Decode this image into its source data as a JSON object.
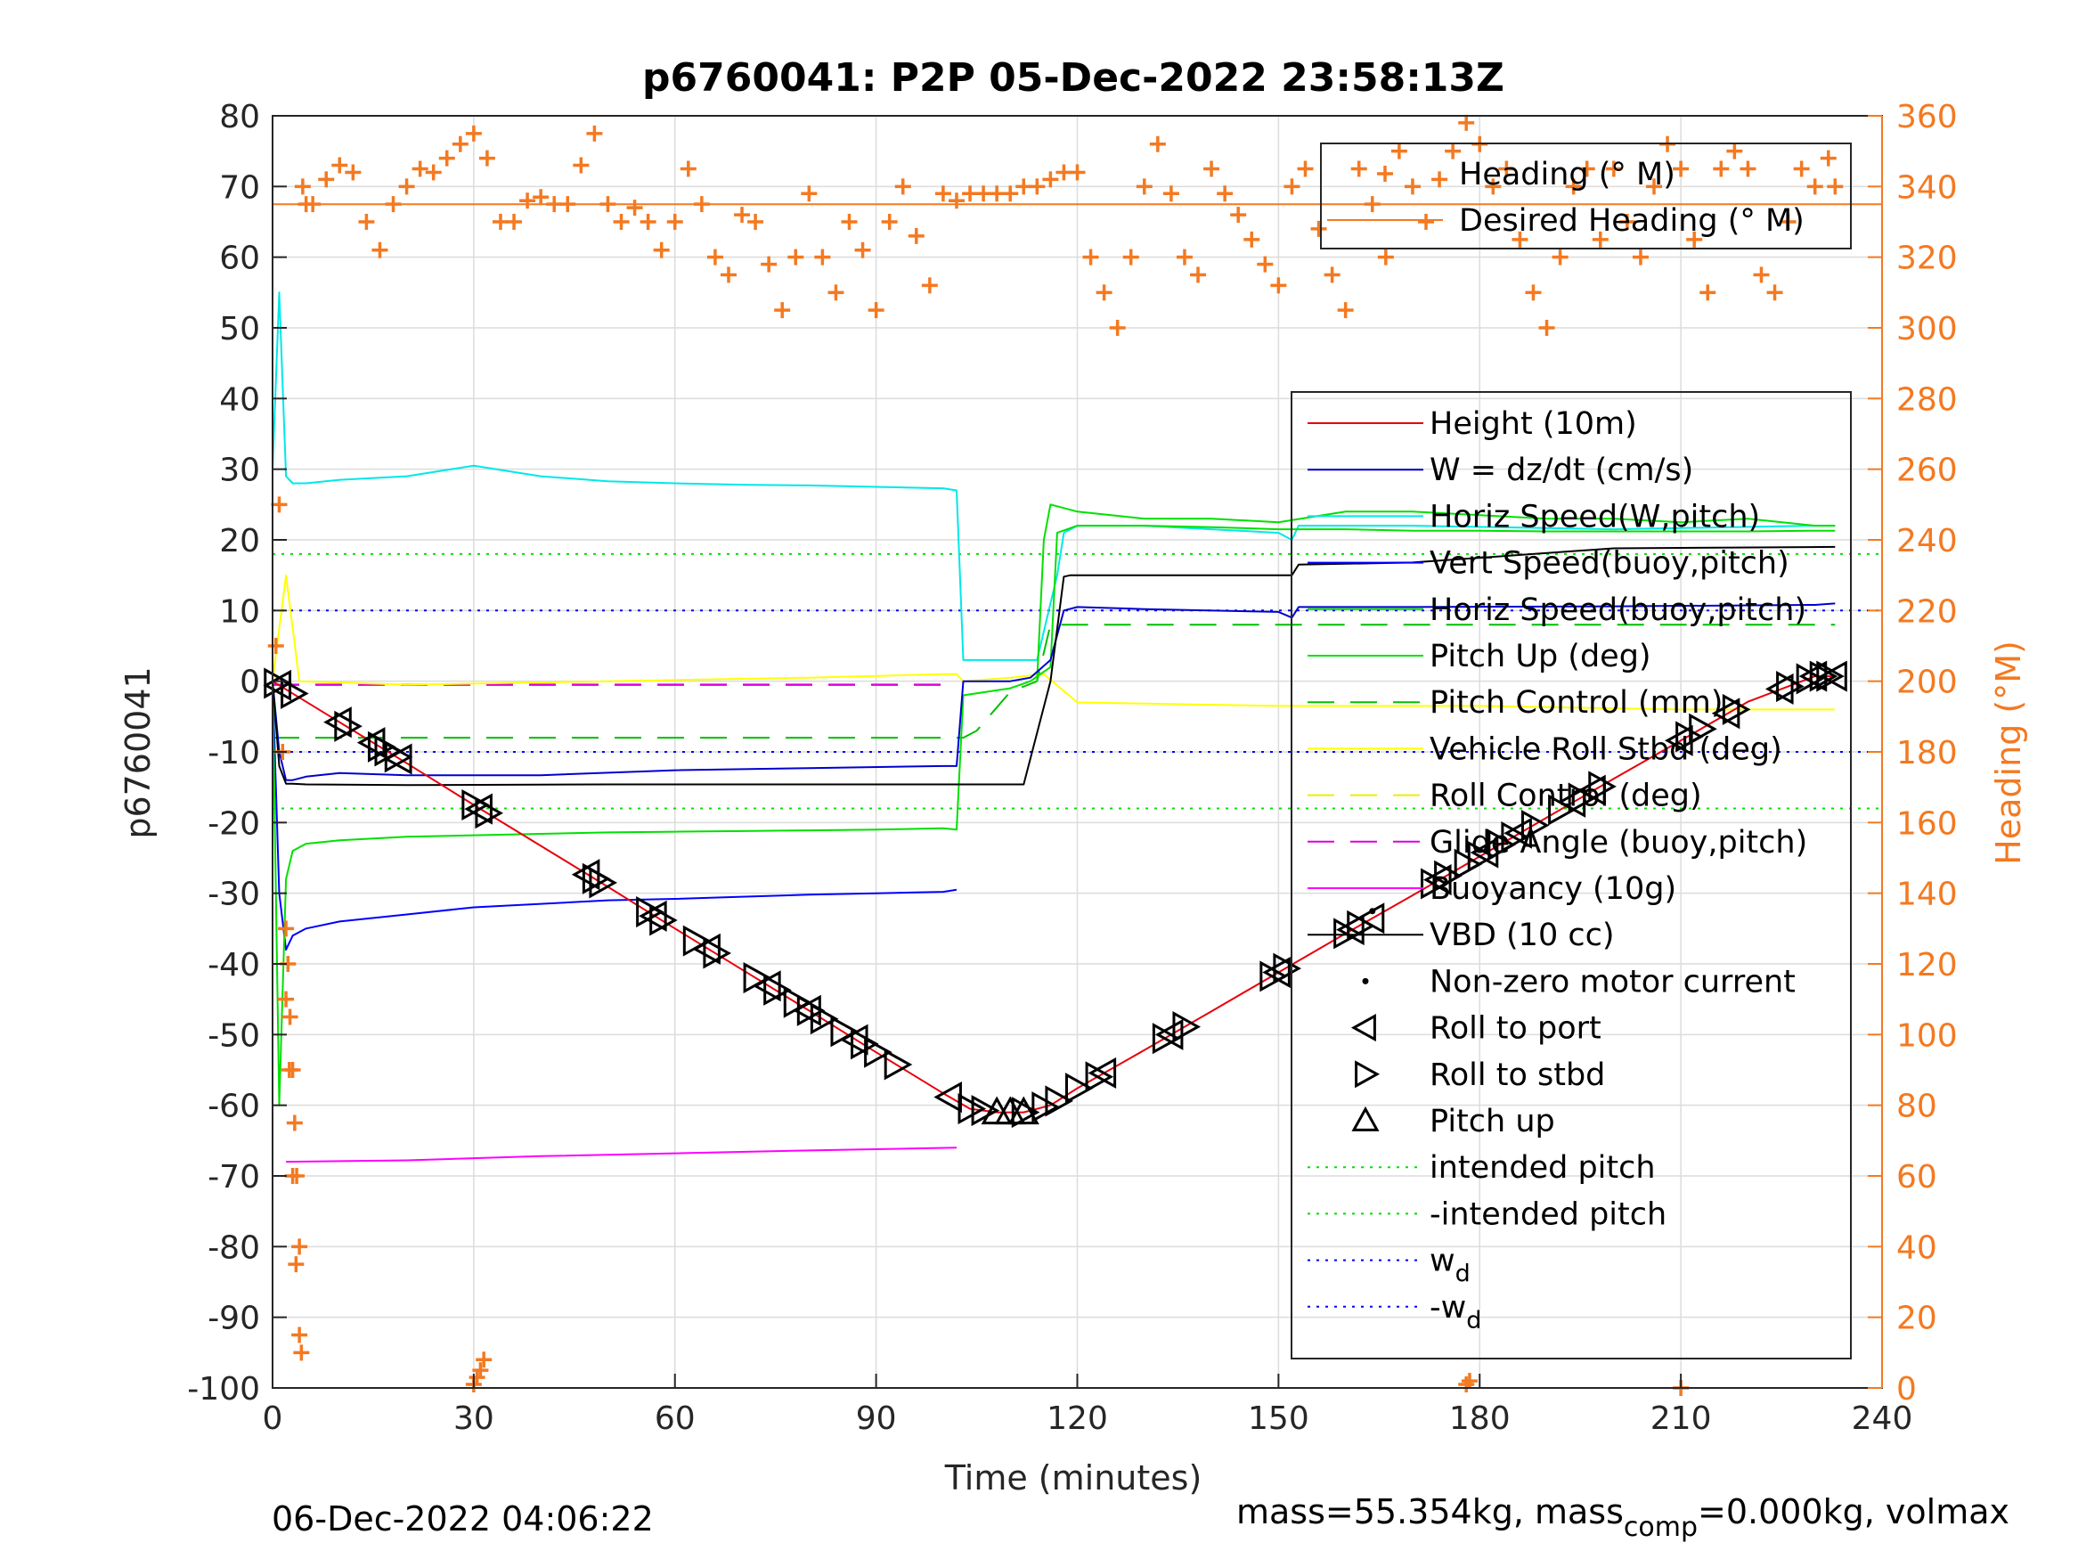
{
  "chart_data": {
    "type": "line",
    "title": "p6760041: P2P 05-Dec-2022 23:58:13Z",
    "xlabel": "Time (minutes)",
    "ylabel": "p6760041",
    "y2label": "Heading (°M)",
    "xlim": [
      0,
      240
    ],
    "ylim": [
      -100,
      80
    ],
    "y2lim": [
      0,
      360
    ],
    "xticks": [
      "0",
      "30",
      "60",
      "90",
      "120",
      "150",
      "180",
      "210",
      "240"
    ],
    "yticks": [
      "-100",
      "-90",
      "-80",
      "-70",
      "-60",
      "-50",
      "-40",
      "-30",
      "-20",
      "-10",
      "0",
      "10",
      "20",
      "30",
      "40",
      "50",
      "60",
      "70",
      "80"
    ],
    "y2ticks": [
      "0",
      "20",
      "40",
      "60",
      "80",
      "100",
      "120",
      "140",
      "160",
      "180",
      "200",
      "220",
      "240",
      "260",
      "280",
      "300",
      "320",
      "340",
      "360"
    ],
    "grid": true,
    "footer_left": "06-Dec-2022 04:06:22",
    "footer_right": {
      "pre": "mass=55.354kg, mass",
      "sub": "comp",
      "post": "=0.000kg, volmax"
    },
    "colors": {
      "heading": "#f47920",
      "height": "#e8000b",
      "w": "#0000d0",
      "horiz_w": "#00e8e8",
      "vert_buoy": "#0000ff",
      "horiz_buoy": "#00e000",
      "pitch": "#00e000",
      "pitch_ctrl": "#00c000",
      "roll": "#ffff00",
      "roll_ctrl": "#eeee00",
      "glide": "#dd00dd",
      "buoy": "#ff00ff",
      "vbd": "#000000"
    },
    "legend_heading": [
      {
        "label": "Heading (° M)",
        "color": "#f47920",
        "style": "marker+"
      },
      {
        "label": "Desired Heading (° M)",
        "color": "#f47920",
        "style": "line"
      }
    ],
    "legend": [
      {
        "label": "Height (10m)",
        "color": "#e8000b",
        "style": "line"
      },
      {
        "label": "W = dz/dt (cm/s)",
        "color": "#0000d0",
        "style": "line"
      },
      {
        "label": "Horiz Speed(W,pitch)",
        "color": "#00e8e8",
        "style": "line"
      },
      {
        "label": "Vert Speed(buoy,pitch)",
        "color": "#0000ff",
        "style": "line"
      },
      {
        "label": "Horiz Speed(buoy,pitch)",
        "color": "#00e000",
        "style": "line"
      },
      {
        "label": "Pitch Up (deg)",
        "color": "#00e000",
        "style": "line"
      },
      {
        "label": "Pitch Control (mm)",
        "color": "#00c000",
        "style": "dash"
      },
      {
        "label": "Vehicle Roll Stbd (deg)",
        "color": "#ffff00",
        "style": "line"
      },
      {
        "label": "Roll Control (deg)",
        "color": "#eeee00",
        "style": "dash"
      },
      {
        "label": "Glide Angle (buoy,pitch)",
        "color": "#dd00dd",
        "style": "dash"
      },
      {
        "label": "Buoyancy (10g)",
        "color": "#ff00ff",
        "style": "line"
      },
      {
        "label": "VBD (10 cc)",
        "color": "#000000",
        "style": "line"
      },
      {
        "label": "Non-zero motor current",
        "color": "#000000",
        "style": "dot"
      },
      {
        "label": "Roll to port",
        "color": "#000000",
        "style": "tri-left"
      },
      {
        "label": "Roll to stbd",
        "color": "#000000",
        "style": "tri-right"
      },
      {
        "label": "Pitch up",
        "color": "#000000",
        "style": "tri-up"
      },
      {
        "label": "intended pitch",
        "color": "#00e000",
        "style": "dotted"
      },
      {
        "label": "-intended pitch",
        "color": "#00e000",
        "style": "dotted"
      },
      {
        "label": "w",
        "sub": "d",
        "color": "#0000ff",
        "style": "dotted"
      },
      {
        "label": "-w",
        "sub": "d",
        "color": "#0000ff",
        "style": "dotted"
      }
    ],
    "series": [
      {
        "name": "Height (10m)",
        "x": [
          0,
          10,
          20,
          30,
          40,
          50,
          60,
          70,
          80,
          90,
          100,
          104,
          108,
          112,
          116,
          120,
          130,
          140,
          150,
          160,
          170,
          180,
          190,
          200,
          210,
          220,
          230,
          233
        ],
        "y": [
          0,
          -5.8,
          -11.6,
          -17.5,
          -23.3,
          -29.1,
          -35.0,
          -40.8,
          -46.6,
          -52.5,
          -58.3,
          -60.5,
          -61.0,
          -61.0,
          -60.0,
          -57.6,
          -52.2,
          -46.7,
          -41.2,
          -35.7,
          -30.3,
          -24.8,
          -19.3,
          -13.8,
          -8.4,
          -2.9,
          0.7,
          0.7
        ]
      },
      {
        "name": "W = dz/dt (cm/s)",
        "x": [
          0,
          1,
          2,
          3,
          5,
          10,
          20,
          40,
          60,
          80,
          100,
          102,
          103,
          105,
          110,
          113,
          116,
          118,
          120,
          130,
          150,
          152,
          153,
          170,
          200,
          230,
          233
        ],
        "y": [
          0,
          -10,
          -14,
          -14,
          -13.5,
          -13,
          -13.3,
          -13.3,
          -12.6,
          -12.3,
          -12.0,
          -12.0,
          0,
          0,
          0,
          0.5,
          3,
          10,
          10.5,
          10.2,
          9.8,
          9,
          10.5,
          10.5,
          10.6,
          10.8,
          11
        ]
      },
      {
        "name": "Horiz Speed(W,pitch)",
        "x": [
          0,
          1,
          2,
          3,
          5,
          10,
          20,
          30,
          40,
          50,
          60,
          70,
          80,
          90,
          100,
          102,
          103,
          110,
          114,
          117,
          118,
          120,
          130,
          140,
          150,
          152,
          153,
          170,
          200,
          230,
          233
        ],
        "y": [
          30,
          55,
          29,
          28,
          28,
          28.5,
          29,
          30.5,
          29,
          28.3,
          28,
          27.8,
          27.7,
          27.5,
          27.3,
          27,
          3,
          3,
          3,
          15,
          21,
          22,
          22,
          21.5,
          21,
          20,
          22,
          22,
          21.5,
          22,
          22
        ]
      },
      {
        "name": "Vert Speed(buoy,pitch)",
        "x": [
          0,
          1,
          2,
          3,
          5,
          10,
          20,
          30,
          40,
          50,
          60,
          70,
          80,
          90,
          100,
          102
        ],
        "y": [
          0,
          -30,
          -38,
          -36,
          -35,
          -34,
          -33,
          -32,
          -31.5,
          -31,
          -30.8,
          -30.5,
          -30.2,
          -30,
          -29.8,
          -29.5
        ]
      },
      {
        "name": "Horiz Speed(buoy,pitch)",
        "x": [
          114,
          115,
          116,
          120,
          130,
          140,
          150,
          160,
          170,
          180,
          190,
          200,
          210,
          220,
          230,
          233
        ],
        "y": [
          0,
          20,
          25,
          24,
          23,
          23,
          22.5,
          24,
          24,
          23.5,
          23,
          23,
          22.5,
          23,
          22,
          22
        ]
      },
      {
        "name": "Pitch Up (deg)",
        "x": [
          0,
          1,
          2,
          3,
          5,
          10,
          20,
          30,
          40,
          50,
          60,
          70,
          80,
          90,
          100,
          102,
          103,
          110,
          113,
          116,
          117,
          120,
          130,
          140,
          150,
          160,
          170,
          180,
          190,
          200,
          210,
          220,
          230,
          233
        ],
        "y": [
          0,
          -60,
          -28,
          -24,
          -23,
          -22.5,
          -22,
          -21.8,
          -21.6,
          -21.4,
          -21.3,
          -21.2,
          -21.1,
          -21.0,
          -20.8,
          -21,
          -2,
          -1,
          0,
          2,
          21,
          22,
          22,
          21.8,
          21.5,
          21.5,
          21.3,
          21.3,
          21.2,
          21.2,
          21.2,
          21.2,
          21.3,
          21.3
        ]
      },
      {
        "name": "Pitch Control (mm)",
        "x": [
          0,
          103,
          105,
          110,
          114,
          116,
          120,
          130,
          150,
          170,
          200,
          233
        ],
        "y": [
          -8,
          -8,
          -7,
          -1.5,
          0,
          8,
          8,
          8,
          8,
          8,
          8,
          8
        ]
      },
      {
        "name": "Vehicle Roll Stbd (deg)",
        "x": [
          0,
          2,
          4,
          20,
          50,
          80,
          100,
          102,
          103,
          110,
          115,
          120,
          150,
          180,
          210,
          233
        ],
        "y": [
          0,
          15,
          0,
          -0.5,
          0,
          0.5,
          1,
          1,
          0,
          0.5,
          1,
          -3,
          -3.5,
          -3.5,
          -4,
          -4
        ]
      },
      {
        "name": "Glide Angle (buoy,pitch)",
        "x": [
          0,
          102
        ],
        "y": [
          -0.5,
          -0.5
        ]
      },
      {
        "name": "Buoyancy (10g)",
        "x": [
          2,
          20,
          40,
          60,
          80,
          102
        ],
        "y": [
          -68,
          -67.8,
          -67.2,
          -66.8,
          -66.4,
          -66
        ]
      },
      {
        "name": "VBD (10 cc)",
        "x": [
          0,
          1,
          2,
          3,
          5,
          20,
          50,
          80,
          108,
          109,
          110,
          111,
          112,
          116,
          118,
          119,
          120,
          150,
          152,
          153,
          170,
          200,
          233
        ],
        "y": [
          0,
          -12,
          -14.5,
          -14.5,
          -14.6,
          -14.7,
          -14.6,
          -14.6,
          -14.6,
          -14.6,
          -14.6,
          -14.6,
          -14.6,
          0,
          14.8,
          15,
          15,
          15,
          15,
          16.5,
          16.8,
          18.8,
          19
        ]
      },
      {
        "name": "intended pitch",
        "x": [
          0,
          240
        ],
        "y": [
          18,
          18
        ]
      },
      {
        "name": "-intended pitch",
        "x": [
          0,
          240
        ],
        "y": [
          -18,
          -18
        ]
      },
      {
        "name": "w_d",
        "x": [
          0,
          240
        ],
        "y": [
          10,
          10
        ]
      },
      {
        "name": "-w_d",
        "x": [
          0,
          240
        ],
        "y": [
          -10,
          -10
        ]
      }
    ],
    "desired_heading": [
      {
        "x": [
          0,
          240
        ],
        "y": [
          335,
          335
        ]
      }
    ],
    "heading": {
      "x": [
        0.5,
        1,
        1.5,
        2,
        2.5,
        3,
        3.5,
        4,
        4.5,
        5,
        6,
        8,
        10,
        12,
        14,
        16,
        18,
        20,
        22,
        24,
        26,
        28,
        30,
        32,
        34,
        36,
        38,
        40,
        42,
        44,
        46,
        48,
        50,
        52,
        54,
        56,
        58,
        60,
        62,
        64,
        66,
        68,
        70,
        72,
        74,
        76,
        78,
        80,
        82,
        84,
        86,
        88,
        90,
        92,
        94,
        96,
        98,
        100,
        102,
        104,
        106,
        108,
        110,
        112,
        114,
        116,
        118,
        120,
        122,
        124,
        126,
        128,
        130,
        132,
        134,
        136,
        138,
        140,
        142,
        144,
        146,
        148,
        150,
        152,
        154,
        156,
        158,
        160,
        162,
        164,
        166,
        168,
        170,
        172,
        174,
        176,
        178,
        180,
        182,
        184,
        186,
        188,
        190,
        192,
        194,
        196,
        198,
        200,
        202,
        204,
        206,
        208,
        210,
        212,
        214,
        216,
        218,
        220,
        222,
        224,
        226,
        228,
        230,
        232,
        233
      ],
      "y": [
        210,
        250,
        180,
        110,
        90,
        60,
        35,
        15,
        340,
        335,
        335,
        342,
        346,
        344,
        330,
        322,
        335,
        340,
        345,
        344,
        348,
        352,
        355,
        348,
        330,
        330,
        336,
        337,
        335,
        335,
        346,
        355,
        335,
        330,
        334,
        330,
        322,
        330,
        345,
        335,
        320,
        315,
        332,
        330,
        318,
        305,
        320,
        338,
        320,
        310,
        330,
        322,
        305,
        330,
        340,
        326,
        312,
        338,
        336,
        338,
        338,
        338,
        338,
        340,
        340,
        342,
        344,
        344,
        320,
        310,
        300,
        320,
        340,
        352,
        338,
        320,
        315,
        345,
        338,
        332,
        325,
        318,
        312,
        340,
        345,
        328,
        315,
        305,
        345,
        335,
        320,
        350,
        340,
        330,
        342,
        350,
        358,
        352,
        340,
        345,
        325,
        310,
        300,
        320,
        340,
        345,
        325,
        345,
        330,
        320,
        340,
        352,
        345,
        325,
        310,
        345,
        350,
        345,
        315,
        310,
        330,
        345,
        340,
        348,
        340
      ]
    },
    "heading_outliers": {
      "x": [
        2,
        2.3,
        2.6,
        3,
        3.3,
        3.6,
        4,
        4.3,
        30,
        30.5,
        31,
        31.5,
        178,
        178.5,
        210
      ],
      "y": [
        130,
        120,
        105,
        90,
        75,
        60,
        40,
        10,
        1,
        3,
        5,
        8,
        1,
        2,
        0
      ]
    },
    "markers": [
      {
        "type": "tri-right",
        "x": [
          0.5,
          3,
          11,
          16,
          17,
          18.5,
          30,
          32,
          48,
          49,
          56,
          58,
          63,
          66,
          72,
          75,
          78,
          80,
          82,
          85,
          88,
          90,
          93,
          104,
          106,
          112,
          115,
          117,
          120,
          123,
          133,
          136,
          149,
          151,
          160,
          162,
          173,
          175,
          178,
          180,
          183,
          185,
          188,
          192,
          195,
          198,
          211,
          213,
          218,
          226,
          229,
          231,
          232
        ]
      },
      {
        "type": "tri-up",
        "x": [
          108,
          110,
          112
        ]
      },
      {
        "type": "tri-left",
        "x": [
          1,
          10,
          15,
          19,
          31,
          47,
          57,
          65,
          74,
          80,
          87,
          101,
          124,
          134,
          150,
          161,
          164,
          174,
          181,
          186,
          194,
          197,
          210,
          217,
          225,
          230,
          233
        ]
      },
      {
        "type": "dot",
        "x": [
          164
        ]
      }
    ]
  }
}
